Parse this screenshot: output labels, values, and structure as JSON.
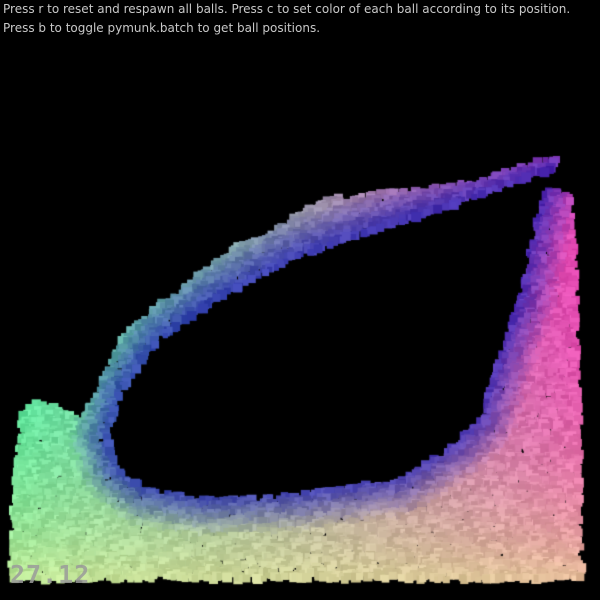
{
  "instructions": {
    "line1": "Press r to reset and respawn all balls. Press c to set color of each ball according to its position.",
    "line2": "Press b to toggle pymunk.batch to get ball positions."
  },
  "fps_counter": "27.12",
  "colors": {
    "background": "#000000",
    "text": "#c8c8c8",
    "fps_text": "#9a9a9a",
    "ball_color_left": "#46e6a0",
    "ball_color_right": "#e646b4",
    "ball_color_bottom": "#e6e691",
    "ball_color_inner": "#1e1eb4"
  }
}
